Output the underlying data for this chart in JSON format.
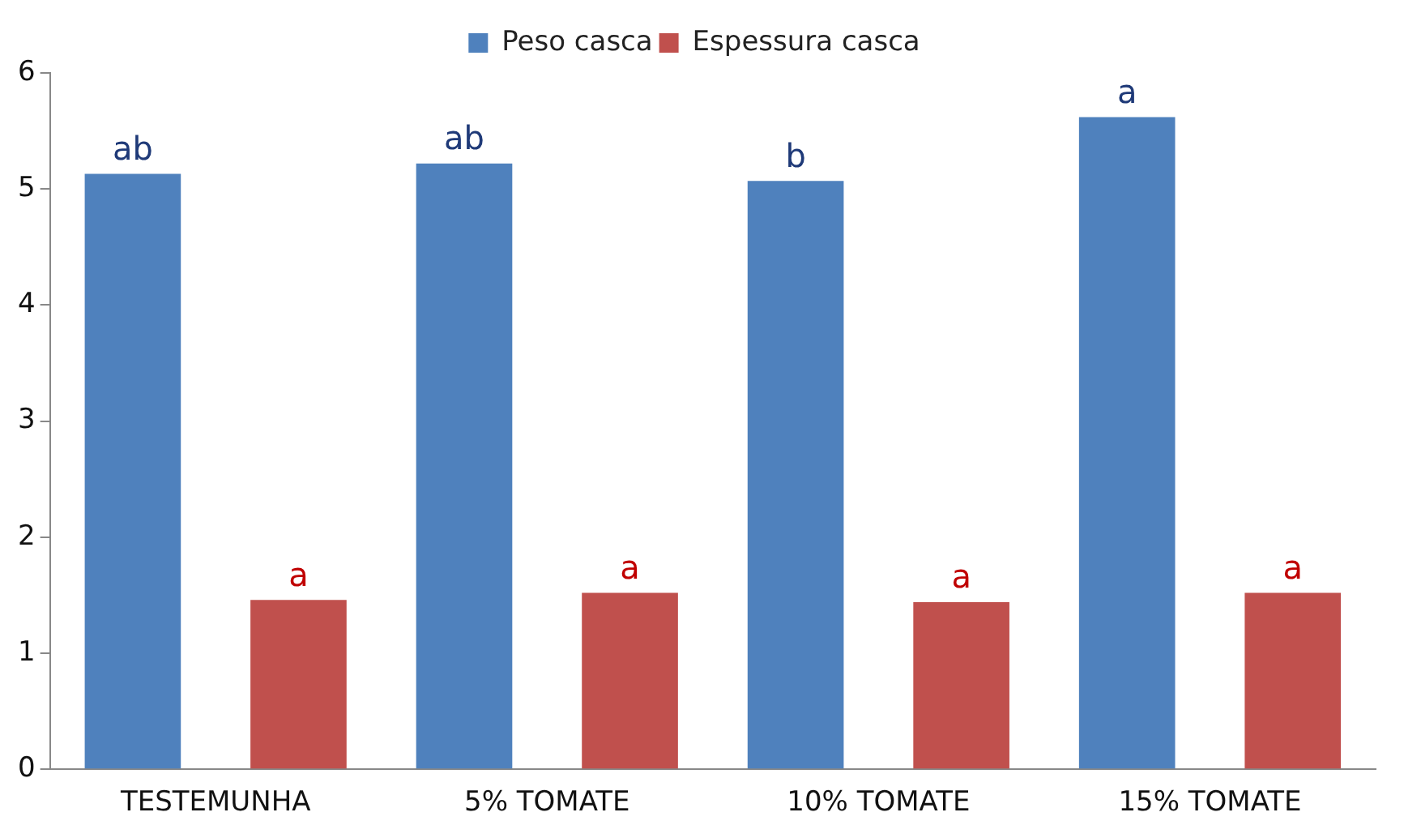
{
  "chart_data": {
    "type": "bar",
    "categories": [
      "TESTEMUNHA",
      "5% TOMATE",
      "10% TOMATE",
      "15% TOMATE"
    ],
    "series": [
      {
        "name": "Peso casca",
        "color": "#4f81bd",
        "values": [
          5.13,
          5.22,
          5.07,
          5.62
        ],
        "value_labels": [
          "ab",
          "ab",
          "b",
          "a"
        ]
      },
      {
        "name": "Espessura casca",
        "color": "#c0504d",
        "values": [
          1.46,
          1.52,
          1.44,
          1.52
        ],
        "value_labels": [
          "a",
          "a",
          "a",
          "a"
        ]
      }
    ],
    "ylim": [
      0,
      6
    ],
    "yticks": [
      0,
      1,
      2,
      3,
      4,
      5,
      6
    ],
    "grid": false,
    "legend": "top"
  }
}
